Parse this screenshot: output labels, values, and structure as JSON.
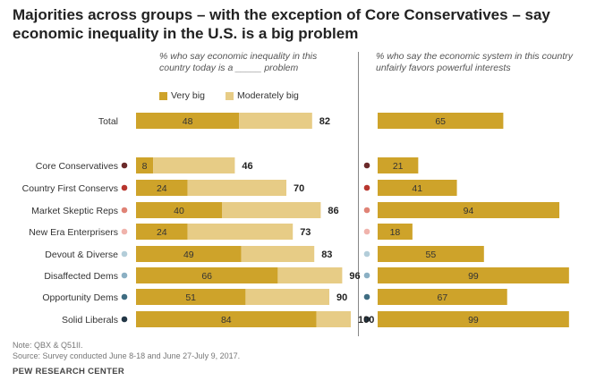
{
  "title": "Majorities across groups – with the exception of Core Conservatives – say economic inequality in the U.S. is a big problem",
  "colors": {
    "very_big": "#cea32a",
    "moderately_big": "#e7cc86",
    "dot_border": "#ffffff"
  },
  "chart_data": [
    {
      "type": "bar",
      "stacked": true,
      "orientation": "horizontal",
      "subtitle": "% who say economic inequality in this country today is a _____ problem",
      "categories": [
        "Total",
        "Core Conservatives",
        "Country First Conservs",
        "Market Skeptic Reps",
        "New Era Enterprisers",
        "Devout & Diverse",
        "Disaffected Dems",
        "Opportunity Dems",
        "Solid Liberals"
      ],
      "series": [
        {
          "name": "Very big",
          "values": [
            48,
            8,
            24,
            40,
            24,
            49,
            66,
            51,
            84
          ]
        },
        {
          "name": "Moderately big",
          "values": [
            34,
            38,
            46,
            46,
            49,
            34,
            30,
            39,
            16
          ]
        }
      ],
      "totals": [
        82,
        46,
        70,
        86,
        73,
        83,
        96,
        90,
        100
      ],
      "xlim": [
        0,
        100
      ]
    },
    {
      "type": "bar",
      "orientation": "horizontal",
      "subtitle": "% who say the economic system in this country unfairly favors powerful interests",
      "categories": [
        "Total",
        "Core Conservatives",
        "Country First Conservs",
        "Market Skeptic Reps",
        "New Era Enterprisers",
        "Devout & Diverse",
        "Disaffected Dems",
        "Opportunity Dems",
        "Solid Liberals"
      ],
      "values": [
        65,
        21,
        41,
        94,
        18,
        55,
        99,
        67,
        99
      ],
      "xlim": [
        0,
        100
      ]
    }
  ],
  "group_dot_colors": [
    "",
    "#6b2a2a",
    "#b8362e",
    "#e08376",
    "#f0b3ac",
    "#b3cdd9",
    "#8bb0c4",
    "#3f6d82",
    "#233746"
  ],
  "notes": {
    "note": "Note: QBX & Q51II.",
    "source": "Source: Survey conducted June 8-18 and June 27-July 9, 2017."
  },
  "credit": "PEW RESEARCH CENTER"
}
